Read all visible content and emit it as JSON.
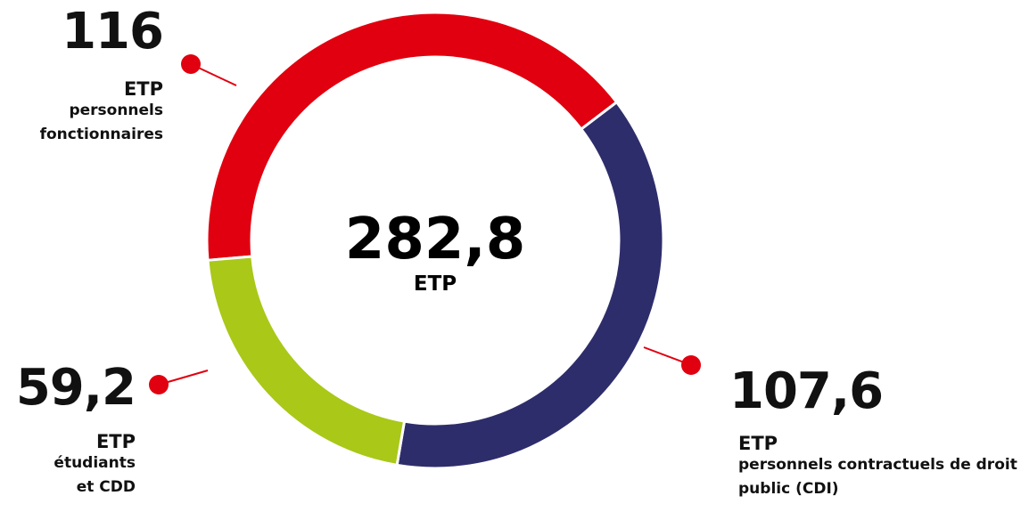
{
  "chart_data": {
    "type": "donut",
    "categories": [
      "personnels fonctionnaires",
      "personnels contractuels de droit public (CDI)",
      "étudiants et CDD"
    ],
    "values": [
      116,
      107.6,
      59.2
    ],
    "value_labels": [
      "116",
      "107,6",
      "59,2"
    ],
    "colors": [
      "#e1000f",
      "#2e2d6b",
      "#a9c818"
    ],
    "unit": "ETP",
    "total": 282.8,
    "total_label": "282,8"
  }
}
